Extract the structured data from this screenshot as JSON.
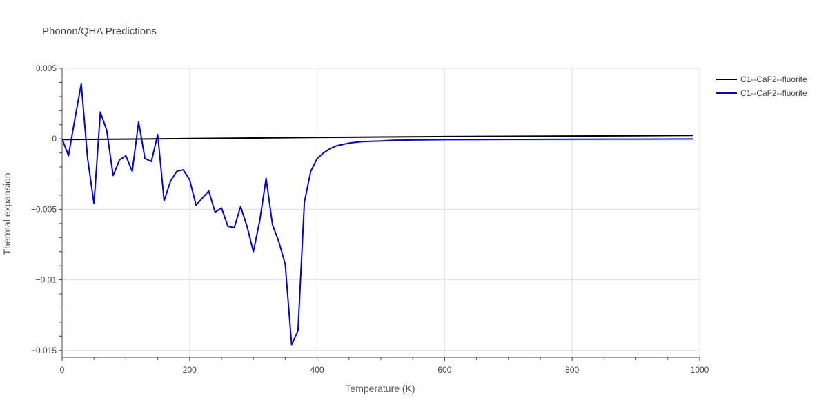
{
  "chart_data": {
    "type": "line",
    "title": "Phonon/QHA Predictions",
    "xlabel": "Temperature (K)",
    "ylabel": "Thermal expansion",
    "xlim": [
      0,
      1000
    ],
    "ylim": [
      -0.0155,
      0.005
    ],
    "grid": true,
    "legend_placement": "top-right",
    "x_ticks": [
      {
        "value": 0,
        "label": "0"
      },
      {
        "value": 200,
        "label": "200"
      },
      {
        "value": 400,
        "label": "400"
      },
      {
        "value": 600,
        "label": "600"
      },
      {
        "value": 800,
        "label": "800"
      },
      {
        "value": 1000,
        "label": "1000"
      }
    ],
    "y_ticks": [
      {
        "value": 0.005,
        "label": "0.005"
      },
      {
        "value": 0,
        "label": "0"
      },
      {
        "value": -0.005,
        "label": "−0.005"
      },
      {
        "value": -0.01,
        "label": "−0.01"
      },
      {
        "value": -0.015,
        "label": "−0.015"
      }
    ],
    "series": [
      {
        "name": "C1--CaF2--fluorite",
        "color": "#000000",
        "x": [
          0,
          100,
          200,
          300,
          400,
          500,
          600,
          700,
          800,
          900,
          990
        ],
        "y": [
          -5e-05,
          -2e-05,
          2e-05,
          6e-05,
          0.0001,
          0.00013,
          0.00016,
          0.00018,
          0.0002,
          0.00022,
          0.00024
        ]
      },
      {
        "name": "C1--CaF2--fluorite",
        "color": "#0000dd",
        "x": [
          0,
          10,
          20,
          30,
          40,
          50,
          60,
          70,
          80,
          90,
          100,
          110,
          120,
          130,
          140,
          150,
          160,
          170,
          180,
          190,
          200,
          210,
          220,
          230,
          240,
          250,
          260,
          270,
          280,
          290,
          300,
          310,
          320,
          330,
          340,
          350,
          360,
          370,
          380,
          390,
          400,
          410,
          420,
          430,
          440,
          450,
          460,
          470,
          480,
          500,
          520,
          550,
          600,
          650,
          700,
          800,
          900,
          990
        ],
        "y": [
          0,
          -0.0012,
          0.0014,
          0.0039,
          -0.0014,
          -0.0046,
          0.0019,
          0.0006,
          -0.0026,
          -0.0015,
          -0.0012,
          -0.0023,
          0.0012,
          -0.0014,
          -0.0016,
          0.0003,
          -0.0044,
          -0.003,
          -0.0023,
          -0.0022,
          -0.0029,
          -0.0047,
          -0.0042,
          -0.0037,
          -0.0052,
          -0.0049,
          -0.0062,
          -0.0063,
          -0.0048,
          -0.0062,
          -0.008,
          -0.0058,
          -0.0028,
          -0.0061,
          -0.0073,
          -0.0089,
          -0.0146,
          -0.0136,
          -0.0045,
          -0.0023,
          -0.0014,
          -0.001,
          -0.0007,
          -0.0005,
          -0.0004,
          -0.0003,
          -0.00025,
          -0.0002,
          -0.00018,
          -0.00015,
          -0.0001,
          -8e-05,
          -6e-05,
          -5e-05,
          -4e-05,
          -3e-05,
          -2e-05,
          -1e-05
        ]
      }
    ]
  }
}
